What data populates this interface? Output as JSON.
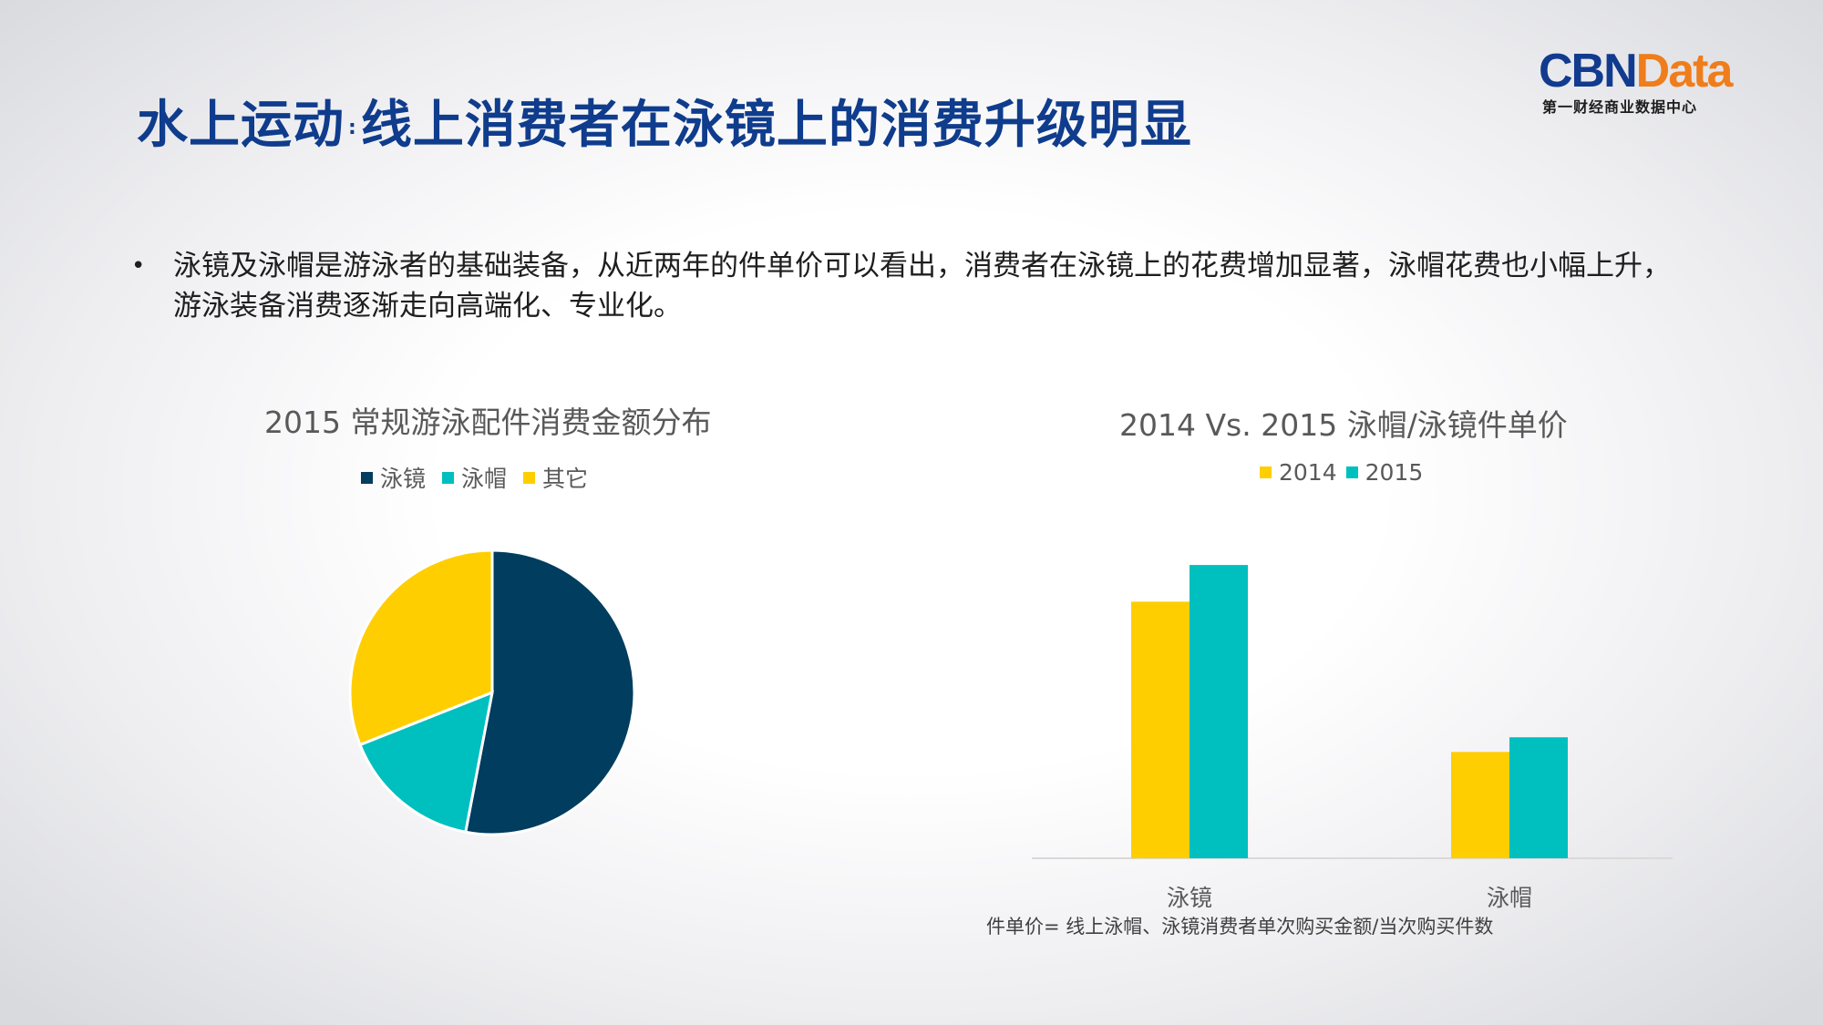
{
  "slide": {
    "title_main": "水上运动",
    "title_sep": ":",
    "title_sub": "线上消费者在泳镜上的消费升级明显",
    "bullet_marker": "•",
    "bullet_text": "泳镜及泳帽是游泳者的基础装备，从近两年的件单价可以看出，消费者在泳镜上的花费增加显著，泳帽花费也小幅上升，游泳装备消费逐渐走向高端化、专业化。",
    "footnote": "件单价= 线上泳帽、泳镜消费者单次购买金额/当次购买件数"
  },
  "logo": {
    "word_part1": "CBN",
    "word_part2": "Data",
    "subtitle": "第一财经商业数据中心",
    "colors": {
      "cbn": "#123b8f",
      "data": "#ef7d1b"
    }
  },
  "colors": {
    "navy": "#003d5e",
    "teal": "#00bfbf",
    "yellow": "#ffce00",
    "title": "#0f3c8c"
  },
  "chart_data": [
    {
      "type": "pie",
      "title": "2015 常规游泳配件消费金额分布",
      "legend_position": "top",
      "series": [
        {
          "name": "泳镜",
          "value": 53,
          "color": "#003d5e"
        },
        {
          "name": "泳帽",
          "value": 16,
          "color": "#00bfbf"
        },
        {
          "name": "其它",
          "value": 31,
          "color": "#ffce00"
        }
      ]
    },
    {
      "type": "bar",
      "title": "2014 Vs. 2015 泳帽/泳镜件单价",
      "legend_position": "top",
      "categories": [
        "泳镜",
        "泳帽"
      ],
      "series": [
        {
          "name": "2014",
          "values": [
            70,
            29
          ],
          "color": "#ffce00"
        },
        {
          "name": "2015",
          "values": [
            80,
            33
          ],
          "color": "#00bfbf"
        }
      ],
      "ylim": [
        0,
        85
      ],
      "grid": false,
      "y_axis_visible": false
    }
  ]
}
